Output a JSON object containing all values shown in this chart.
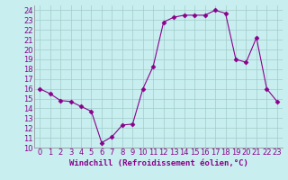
{
  "x": [
    0,
    1,
    2,
    3,
    4,
    5,
    6,
    7,
    8,
    9,
    10,
    11,
    12,
    13,
    14,
    15,
    16,
    17,
    18,
    19,
    20,
    21,
    22,
    23
  ],
  "y": [
    16,
    15.5,
    14.8,
    14.7,
    14.2,
    13.7,
    10.5,
    11.1,
    12.3,
    12.4,
    16.0,
    18.3,
    22.8,
    23.3,
    23.5,
    23.5,
    23.5,
    24.0,
    23.7,
    19.0,
    18.7,
    21.2,
    16.0,
    14.7
  ],
  "line_color": "#8b008b",
  "marker": "D",
  "marker_size": 2.5,
  "bg_color": "#c8eef0",
  "grid_color": "#a0ccc8",
  "xlabel": "Windchill (Refroidissement éolien,°C)",
  "xlabel_fontsize": 6.5,
  "tick_fontsize": 6,
  "xlim": [
    -0.5,
    23.5
  ],
  "ylim": [
    10,
    24.5
  ],
  "yticks": [
    10,
    11,
    12,
    13,
    14,
    15,
    16,
    17,
    18,
    19,
    20,
    21,
    22,
    23,
    24
  ],
  "xticks": [
    0,
    1,
    2,
    3,
    4,
    5,
    6,
    7,
    8,
    9,
    10,
    11,
    12,
    13,
    14,
    15,
    16,
    17,
    18,
    19,
    20,
    21,
    22,
    23
  ]
}
